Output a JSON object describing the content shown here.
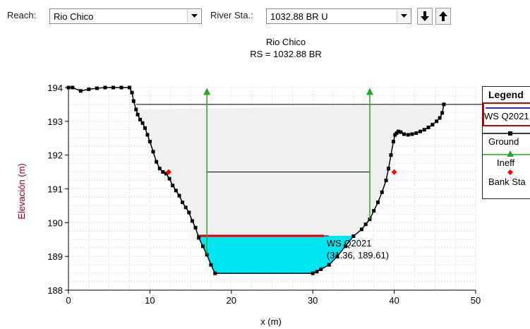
{
  "toolbar": {
    "reach_label": "Reach:",
    "reach_value": "Rio Chico",
    "station_label": "River Sta.:",
    "station_value": "1032.88 BR U"
  },
  "chart_data": {
    "type": "area",
    "title": "Rio Chico",
    "subtitle": "RS = 1032.88  BR",
    "xlabel": "x (m)",
    "ylabel": "Elevación (m)",
    "xlim": [
      0,
      50
    ],
    "ylim": [
      188,
      194
    ],
    "x_ticks": [
      "0",
      "10",
      "20",
      "30",
      "40",
      "50"
    ],
    "y_ticks": [
      "188",
      "189",
      "190",
      "191",
      "192",
      "193",
      "194"
    ],
    "grid": true,
    "legend_position": "right",
    "legend": {
      "title": "Legend",
      "items": [
        "WS Q2021",
        "Ground",
        "Ineff",
        "Bank Sta"
      ]
    },
    "ground": {
      "name": "Ground",
      "x": [
        0,
        0.5,
        1.5,
        2.5,
        3.5,
        4.5,
        5.5,
        6.5,
        7.5,
        7.8,
        8.0,
        8.3,
        8.5,
        8.8,
        9.1,
        9.4,
        9.7,
        10.0,
        10.4,
        10.8,
        11.2,
        11.6,
        12.0,
        12.4,
        12.8,
        13.2,
        13.6,
        14.0,
        14.4,
        14.8,
        15.2,
        15.6,
        16.0,
        16.5,
        17.0,
        17.5,
        18.0,
        30.0,
        30.5,
        31.0,
        32.0,
        33.0,
        34.0,
        35.0,
        36.0,
        36.5,
        37.0,
        37.5,
        38.0,
        38.5,
        39.0,
        39.3,
        39.6,
        39.9,
        40.1,
        40.3,
        40.5,
        40.8,
        41.2,
        41.7,
        42.2,
        42.7,
        43.2,
        43.7,
        44.2,
        44.7,
        45.2,
        45.6,
        45.9,
        46.1
      ],
      "y": [
        194.0,
        194.0,
        193.9,
        193.95,
        193.98,
        194.0,
        194.0,
        194.0,
        194.0,
        193.85,
        193.6,
        193.35,
        193.2,
        193.05,
        192.95,
        192.8,
        192.6,
        192.4,
        192.1,
        191.8,
        191.6,
        191.5,
        191.45,
        191.3,
        191.1,
        190.95,
        190.8,
        190.6,
        190.45,
        190.3,
        190.05,
        189.85,
        189.55,
        189.3,
        189.05,
        188.75,
        188.5,
        188.5,
        188.55,
        188.62,
        188.75,
        189.0,
        189.3,
        189.6,
        189.8,
        189.95,
        190.1,
        190.35,
        190.6,
        190.9,
        191.25,
        191.6,
        192.0,
        192.4,
        192.6,
        192.65,
        192.7,
        192.68,
        192.62,
        192.6,
        192.62,
        192.65,
        192.7,
        192.75,
        192.82,
        192.9,
        193.0,
        193.1,
        193.25,
        193.5
      ]
    },
    "ws": {
      "name": "WS Q2021",
      "elevation": 189.61,
      "x_start": 15.8,
      "x_end": 31.36
    },
    "annotation": {
      "line1": "WS Q2021",
      "line2": "(31.36, 189.61)",
      "x": 31.36,
      "y": 189.61
    },
    "bank_stations": [
      {
        "x": 12.3,
        "y": 191.5
      },
      {
        "x": 40.0,
        "y": 191.5
      }
    ],
    "ineffective": [
      {
        "x": 17.0,
        "y_bottom": 189.05,
        "y_top": 193.95
      },
      {
        "x": 37.0,
        "y_bottom": 190.1,
        "y_top": 193.95
      }
    ],
    "ineffective_elevation": 191.5,
    "reference_elevation": 193.5,
    "colors": {
      "water": "#00e6f0",
      "ws_line": "#e00000",
      "ground": "#000000",
      "ineff": "#22aa22",
      "bank": "#ff0000",
      "fill": "#f0f0f0",
      "ylabel": "#880022"
    }
  }
}
